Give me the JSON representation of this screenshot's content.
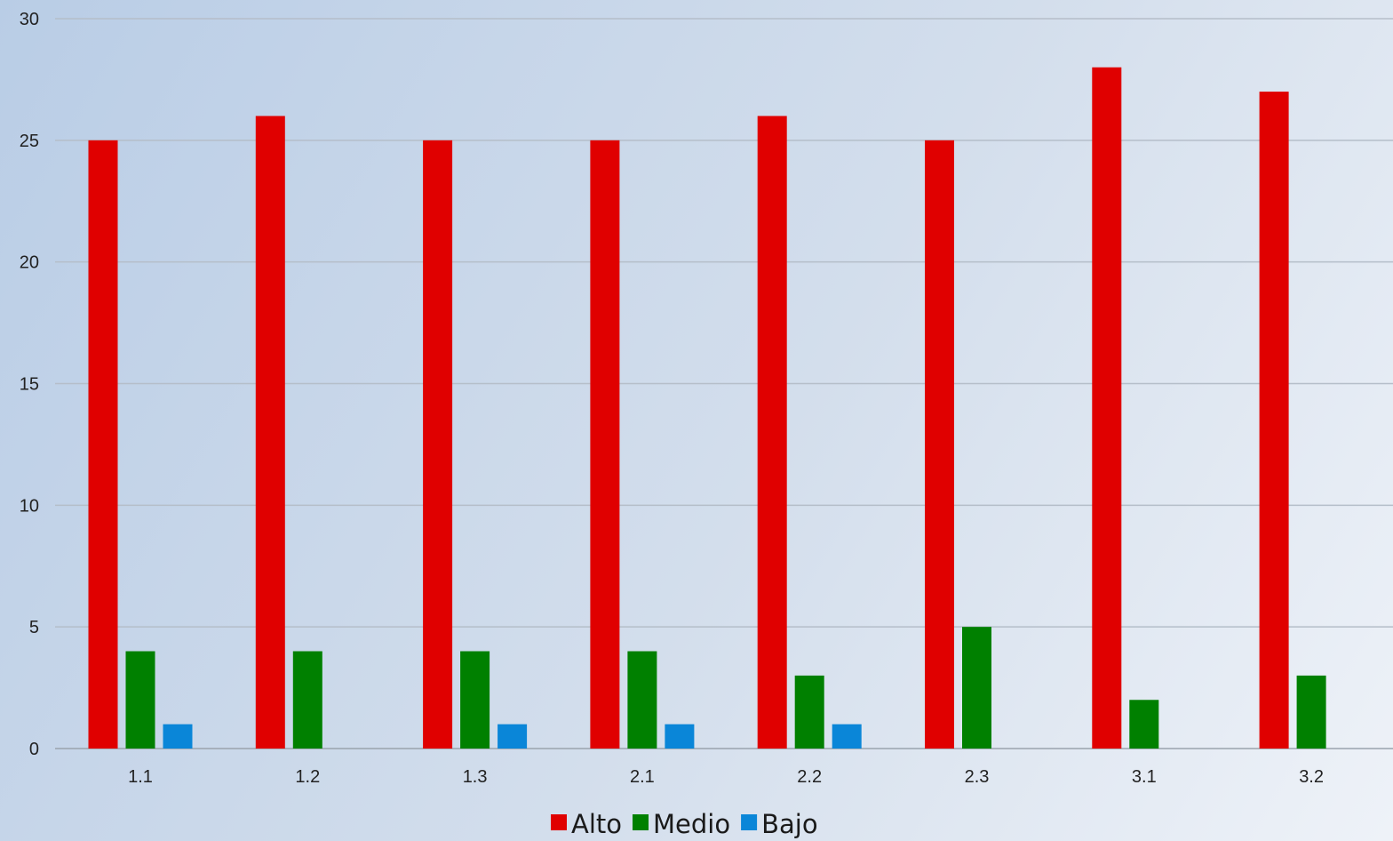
{
  "chart_data": {
    "type": "bar",
    "categories": [
      "1.1",
      "1.2",
      "1.3",
      "2.1",
      "2.2",
      "2.3",
      "3.1",
      "3.2"
    ],
    "series": [
      {
        "name": "Alto",
        "color": "#e00000",
        "values": [
          25,
          26,
          25,
          25,
          26,
          25,
          28,
          27
        ]
      },
      {
        "name": "Medio",
        "color": "#008000",
        "values": [
          4,
          4,
          4,
          4,
          3,
          5,
          2,
          3
        ]
      },
      {
        "name": "Bajo",
        "color": "#0a86d8",
        "values": [
          1,
          0,
          1,
          1,
          1,
          0,
          0,
          0
        ]
      }
    ],
    "ylim": [
      0,
      30
    ],
    "yticks": [
      0,
      5,
      10,
      15,
      20,
      25,
      30
    ],
    "grid": true,
    "legend_position": "bottom",
    "title": "",
    "xlabel": "",
    "ylabel": ""
  }
}
